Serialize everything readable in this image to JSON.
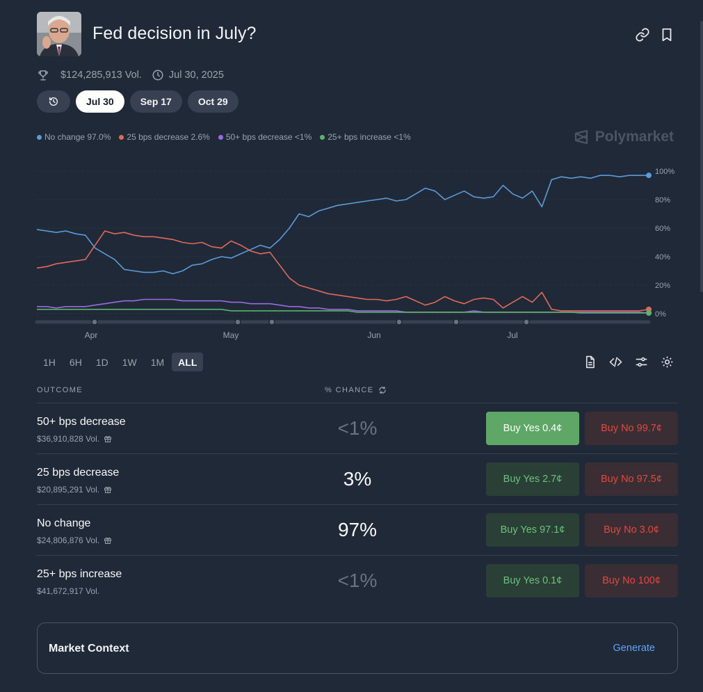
{
  "header": {
    "title": "Fed decision in July?",
    "volume": "$124,285,913 Vol.",
    "date": "Jul 30, 2025"
  },
  "date_tabs": [
    "Jul 30",
    "Sep 17",
    "Oct 29"
  ],
  "brand": "Polymarket",
  "legend": [
    {
      "label": "No change 97.0%",
      "color": "#5b9bd8"
    },
    {
      "label": "25 bps decrease 2.6%",
      "color": "#e06a5a"
    },
    {
      "label": "50+ bps decrease <1%",
      "color": "#9b6ae0"
    },
    {
      "label": "25+ bps increase <1%",
      "color": "#5cb26a"
    }
  ],
  "range_buttons": [
    "1H",
    "6H",
    "1D",
    "1W",
    "1M",
    "ALL"
  ],
  "table": {
    "outcome_header": "OUTCOME",
    "chance_header": "% CHANCE",
    "rows": [
      {
        "name": "50+ bps decrease",
        "volume": "$36,910,828 Vol.",
        "chance": "<1%",
        "yes": "Buy Yes 0.4¢",
        "no": "Buy No 99.7¢"
      },
      {
        "name": "25 bps decrease",
        "volume": "$20,895,291 Vol.",
        "chance": "3%",
        "yes": "Buy Yes 2.7¢",
        "no": "Buy No 97.5¢"
      },
      {
        "name": "No change",
        "volume": "$24,806,876 Vol.",
        "chance": "97%",
        "yes": "Buy Yes 97.1¢",
        "no": "Buy No 3.0¢"
      },
      {
        "name": "25+ bps increase",
        "volume": "$41,672,917 Vol.",
        "chance": "<1%",
        "yes": "Buy Yes 0.1¢",
        "no": "Buy No 100¢"
      }
    ]
  },
  "context": {
    "label": "Market Context",
    "action": "Generate"
  },
  "chart_data": {
    "type": "line",
    "x_tick_labels": [
      "Apr",
      "May",
      "Jun",
      "Jul"
    ],
    "y_tick_labels": [
      "100%",
      "80%",
      "60%",
      "40%",
      "20%",
      "0%"
    ],
    "ylim": [
      0,
      100
    ],
    "series": [
      {
        "name": "No change",
        "color": "#5b9bd8",
        "values": [
          59,
          58,
          57,
          58,
          56,
          55,
          46,
          42,
          38,
          31,
          30,
          29,
          29,
          30,
          28,
          30,
          34,
          35,
          38,
          40,
          39,
          42,
          45,
          48,
          46,
          52,
          60,
          70,
          68,
          72,
          74,
          76,
          77,
          78,
          79,
          80,
          81,
          79,
          80,
          84,
          88,
          86,
          80,
          83,
          86,
          82,
          81,
          82,
          90,
          84,
          81,
          86,
          75,
          94,
          96,
          95,
          96,
          95,
          97,
          97,
          96,
          97,
          97,
          97
        ]
      },
      {
        "name": "25 bps decrease",
        "color": "#e06a5a",
        "values": [
          32,
          33,
          35,
          36,
          37,
          38,
          48,
          58,
          56,
          57,
          55,
          54,
          54,
          53,
          52,
          50,
          49,
          50,
          47,
          46,
          51,
          48,
          44,
          42,
          43,
          34,
          25,
          20,
          18,
          16,
          14,
          13,
          12,
          11,
          10,
          10,
          9,
          10,
          12,
          9,
          6,
          8,
          12,
          9,
          7,
          10,
          11,
          10,
          4,
          8,
          12,
          8,
          15,
          3,
          2,
          2,
          2,
          2,
          2,
          2,
          2,
          2,
          2,
          3
        ]
      },
      {
        "name": "50+ bps decrease",
        "color": "#9b6ae0",
        "values": [
          5,
          5,
          4,
          5,
          5,
          5,
          6,
          7,
          8,
          9,
          9,
          10,
          10,
          10,
          10,
          9,
          9,
          9,
          9,
          9,
          8,
          8,
          7,
          7,
          7,
          6,
          5,
          5,
          4,
          4,
          3,
          3,
          3,
          2,
          2,
          2,
          2,
          2,
          1,
          1,
          1,
          1,
          1,
          1,
          1,
          2,
          1,
          1,
          1,
          1,
          1,
          1,
          1,
          1,
          1,
          1,
          1,
          1,
          1,
          1,
          1,
          1,
          1,
          0.5
        ]
      },
      {
        "name": "25+ bps increase",
        "color": "#5cb26a",
        "values": [
          3,
          3,
          3,
          3,
          3,
          3,
          3,
          3,
          3,
          3,
          3,
          3,
          3,
          3,
          3,
          3,
          3,
          3,
          3,
          3,
          2,
          2,
          2,
          2,
          2,
          2,
          2,
          2,
          2,
          2,
          2,
          2,
          2,
          1,
          1,
          1,
          1,
          1,
          1,
          1,
          1,
          1,
          1,
          1,
          1,
          1,
          1,
          1,
          1,
          1,
          1,
          1,
          1,
          1,
          1,
          1,
          0.5,
          0.5,
          0.5,
          0.5,
          0.5,
          0.5,
          0.5,
          0.5
        ]
      }
    ]
  }
}
